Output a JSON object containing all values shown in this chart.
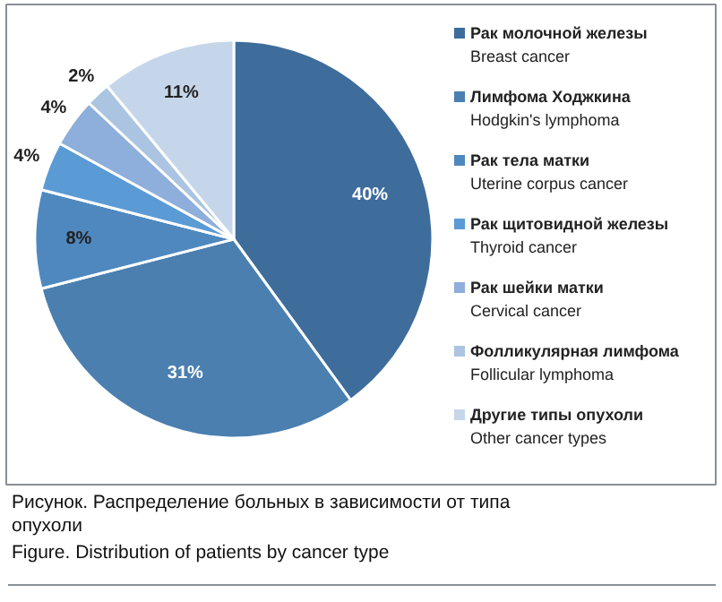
{
  "chart_data": {
    "type": "pie",
    "categories": [
      "Рак молочной железы\nBreast cancer",
      "Лимфома Ходжкина\nHodgkin's lymphoma",
      "Рак тела матки\nUterine corpus cancer",
      "Рак щитовидной железы\nThyroid cancer",
      "Рак шейки матки\nCervical cancer",
      "Фолликулярная лимфома\nFollicular lymphoma",
      "Другие типы опухоли\nOther cancer types"
    ],
    "values": [
      40,
      31,
      8,
      4,
      4,
      2,
      11
    ],
    "value_labels": [
      "40%",
      "31%",
      "8%",
      "4%",
      "4%",
      "2%",
      "11%"
    ],
    "colors": [
      "#3e6d9c",
      "#4a7fb0",
      "#4f88bf",
      "#5b9bd5",
      "#8eaedb",
      "#abc4e2",
      "#c6d6ea"
    ],
    "legend": "right",
    "annotations": [
      "Рисунок. Распределение больных в зависимости от типа опухоли",
      "Figure. Distribution of patients by cancer type"
    ]
  }
}
